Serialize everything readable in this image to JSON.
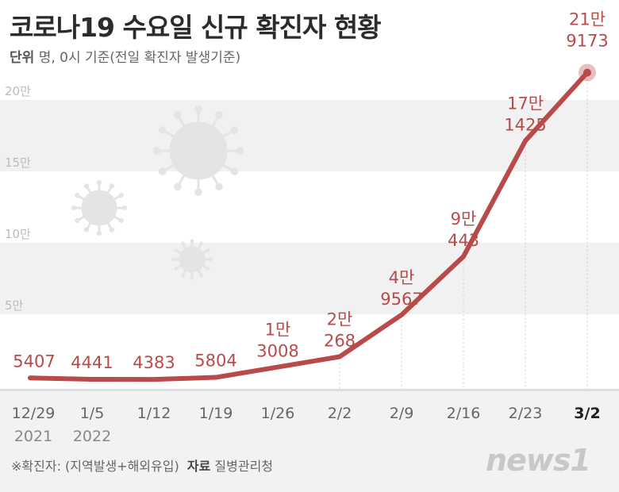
{
  "header": {
    "title": "코로나19 수요일 신규 확진자 현황",
    "unit_label": "단위",
    "unit_text": "명, 0시 기준(전일 확진자 발생기준)"
  },
  "footer": {
    "note": "※확진자: (지역발생+해외유입)",
    "source_label": "자료",
    "source": "질병관리청",
    "logo": "news1"
  },
  "chart_data": {
    "type": "line",
    "categories": [
      "12/29",
      "1/5",
      "1/12",
      "1/19",
      "1/26",
      "2/2",
      "2/9",
      "2/16",
      "2/23",
      "3/2"
    ],
    "year_labels": [
      "2021",
      "2022"
    ],
    "values": [
      5407,
      4441,
      4383,
      5804,
      13008,
      20268,
      49567,
      90443,
      171425,
      219173
    ],
    "data_labels": [
      [
        "5407"
      ],
      [
        "4441"
      ],
      [
        "4383"
      ],
      [
        "5804"
      ],
      [
        "1만",
        "3008"
      ],
      [
        "2만",
        "268"
      ],
      [
        "4만",
        "9567"
      ],
      [
        "9만",
        "443"
      ],
      [
        "17만",
        "1425"
      ],
      [
        "21만",
        "9173"
      ]
    ],
    "y_ticks": [
      {
        "v": 50000,
        "label": "5만"
      },
      {
        "v": 100000,
        "label": "10만"
      },
      {
        "v": 150000,
        "label": "15만"
      },
      {
        "v": 200000,
        "label": "20만"
      }
    ],
    "ylim": [
      0,
      220000
    ],
    "colors": {
      "line": "#b84a4a",
      "label": "#b84a4a",
      "band": "#f1f1f1"
    }
  }
}
